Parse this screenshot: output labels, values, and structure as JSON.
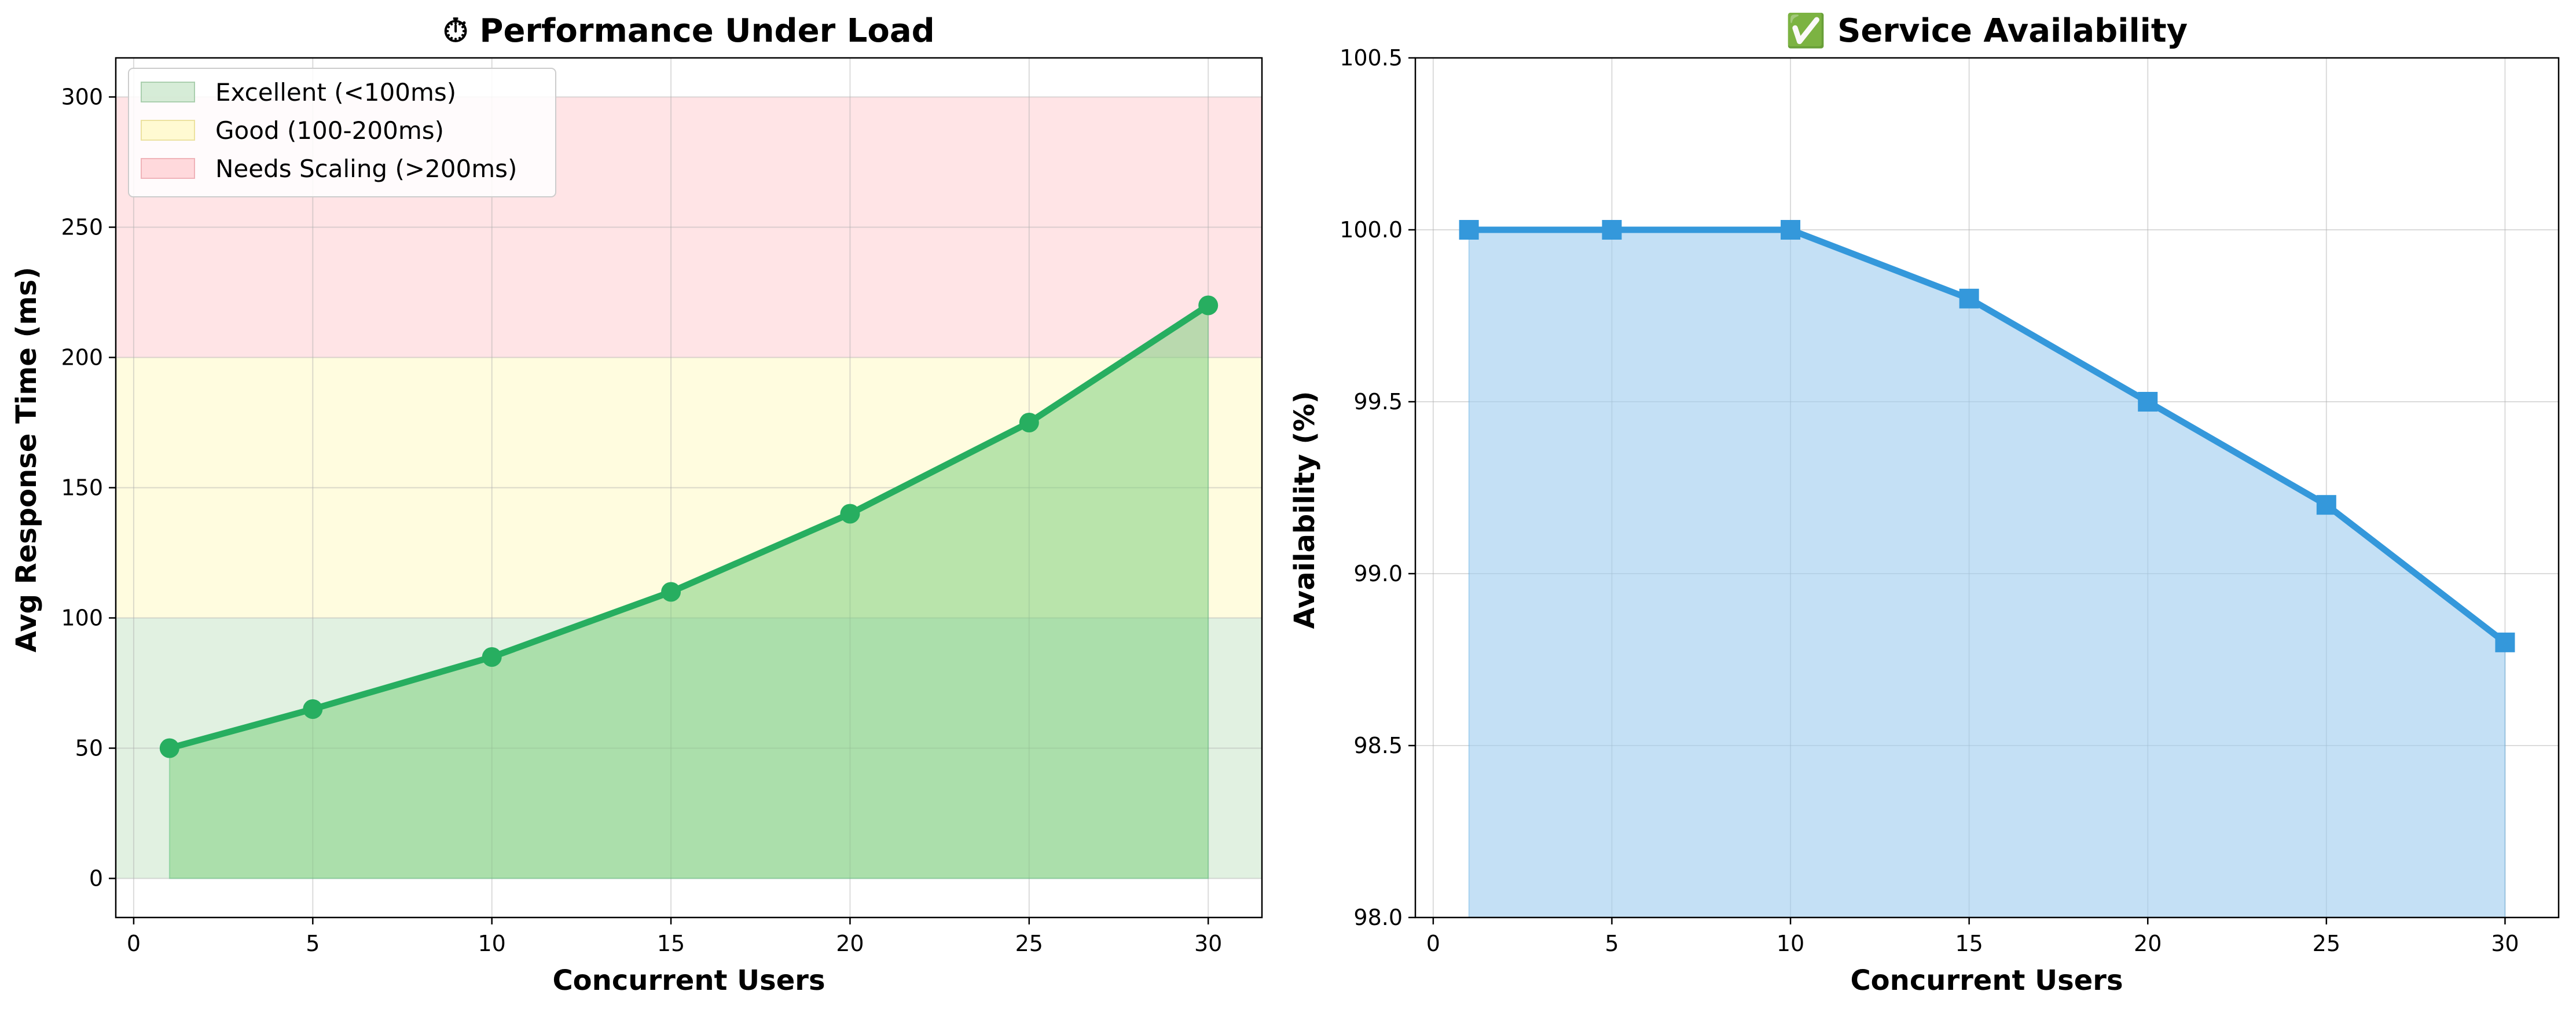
{
  "charts": [
    {
      "title": "⏱ Performance Under Load",
      "xlabel": "Concurrent Users",
      "ylabel": "Avg Response Time (ms)",
      "xticks": [
        "0",
        "5",
        "10",
        "15",
        "20",
        "25",
        "30"
      ],
      "yticks": [
        "0",
        "50",
        "100",
        "150",
        "200",
        "250",
        "300"
      ],
      "legend": [
        {
          "label": "Excellent (<100ms)",
          "color": "#c8e6c9"
        },
        {
          "label": "Good (100-200ms)",
          "color": "#fff9c4"
        },
        {
          "label": "Needs Scaling (>200ms)",
          "color": "#ffcdd2"
        }
      ],
      "line_color": "#27ae60",
      "fill_color": "#7fd07f"
    },
    {
      "title": "✅ Service Availability",
      "xlabel": "Concurrent Users",
      "ylabel": "Availability (%)",
      "xticks": [
        "0",
        "5",
        "10",
        "15",
        "20",
        "25",
        "30"
      ],
      "yticks": [
        "98.0",
        "98.5",
        "99.0",
        "99.5",
        "100.0",
        "100.5"
      ],
      "line_color": "#3498db",
      "fill_color": "#9ccbee"
    }
  ],
  "chart_data": [
    {
      "type": "line",
      "title": "⏱ Performance Under Load",
      "xlabel": "Concurrent Users",
      "ylabel": "Avg Response Time (ms)",
      "x": [
        1,
        5,
        10,
        15,
        20,
        25,
        30
      ],
      "series": [
        {
          "values": [
            50,
            65,
            85,
            110,
            140,
            175,
            220
          ],
          "marker": "circle",
          "color": "#27ae60"
        }
      ],
      "bands": [
        {
          "label": "Excellent (<100ms)",
          "from": 0,
          "to": 100,
          "color": "#c8e6c9"
        },
        {
          "label": "Good (100-200ms)",
          "from": 100,
          "to": 200,
          "color": "#fff9c4"
        },
        {
          "label": "Needs Scaling (>200ms)",
          "from": 200,
          "to": 300,
          "color": "#ffcdd2"
        }
      ],
      "xlim": [
        -0.5,
        31.5
      ],
      "ylim": [
        -15,
        315
      ],
      "grid": true,
      "legend_position": "top-left"
    },
    {
      "type": "area",
      "title": "✅ Service Availability",
      "xlabel": "Concurrent Users",
      "ylabel": "Availability (%)",
      "x": [
        1,
        5,
        10,
        15,
        20,
        25,
        30
      ],
      "series": [
        {
          "values": [
            100.0,
            100.0,
            100.0,
            99.8,
            99.5,
            99.2,
            98.8
          ],
          "marker": "square",
          "color": "#3498db"
        }
      ],
      "xlim": [
        -0.5,
        31.5
      ],
      "ylim": [
        98.0,
        100.5
      ],
      "grid": true
    }
  ]
}
